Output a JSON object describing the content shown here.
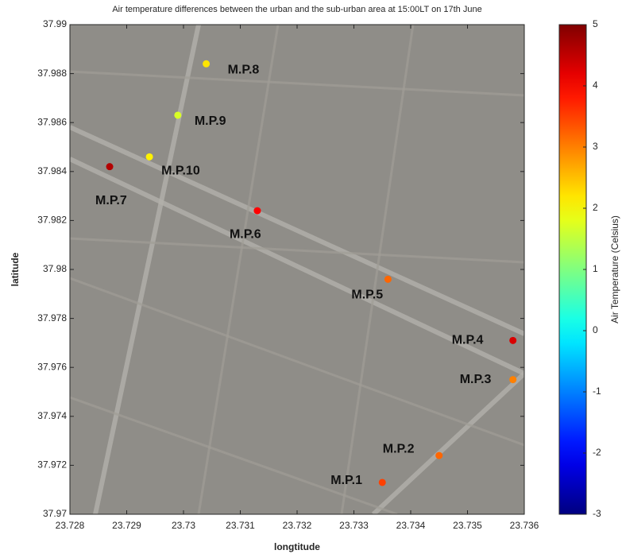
{
  "chart_data": {
    "type": "scatter",
    "title": "Air temperature differences between the urban and the sub-urban area at 15:00LT on 17th June",
    "xlabel": "longtitude",
    "ylabel": "latitude",
    "colorbar_label": "Air Temperature (Celsius)",
    "labels": [
      "M.P.1",
      "M.P.2",
      "M.P.3",
      "M.P.4",
      "M.P.5",
      "M.P.6",
      "M.P.7",
      "M.P.8",
      "M.P.9",
      "M.P.10"
    ],
    "x": [
      23.7335,
      23.7345,
      23.7358,
      23.7358,
      23.7336,
      23.7313,
      23.7287,
      23.7304,
      23.7299,
      23.7294
    ],
    "y": [
      37.9713,
      37.9724,
      37.9755,
      37.9771,
      37.9796,
      37.9824,
      37.9842,
      37.9884,
      37.9863,
      37.9846
    ],
    "values": [
      3.5,
      3.2,
      3.0,
      4.3,
      3.2,
      4.0,
      4.6,
      2.2,
      1.7,
      2.1
    ],
    "xlim": [
      23.728,
      23.736
    ],
    "xticks": [
      23.728,
      23.729,
      23.73,
      23.731,
      23.732,
      23.733,
      23.734,
      23.735,
      23.736
    ],
    "ylim": [
      37.97,
      37.99
    ],
    "yticks": [
      37.97,
      37.972,
      37.974,
      37.976,
      37.978,
      37.98,
      37.982,
      37.984,
      37.986,
      37.988,
      37.99
    ],
    "clim": [
      -3,
      5
    ],
    "cticks": [
      -3,
      -2,
      -1,
      0,
      1,
      2,
      3,
      4,
      5
    ],
    "colormap": "jet"
  }
}
